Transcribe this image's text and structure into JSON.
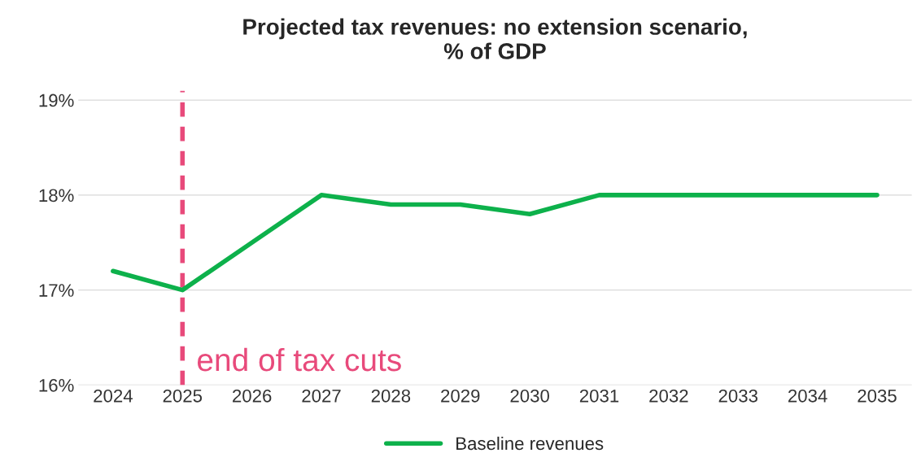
{
  "chart_data": {
    "type": "line",
    "title": "Projected tax revenues: no extension scenario,\n% of GDP",
    "categories": [
      "2024",
      "2025",
      "2026",
      "2027",
      "2028",
      "2029",
      "2030",
      "2031",
      "2032",
      "2033",
      "2034",
      "2035"
    ],
    "series": [
      {
        "name": "Baseline revenues",
        "color": "#0db14b",
        "values": [
          17.2,
          17.0,
          17.5,
          18.0,
          17.9,
          17.9,
          17.8,
          18.0,
          18.0,
          18.0,
          18.0,
          18.0
        ]
      }
    ],
    "ylim": [
      16,
      19.1
    ],
    "yticks": [
      {
        "value": 16,
        "label": "16%"
      },
      {
        "value": 17,
        "label": "17%"
      },
      {
        "value": 18,
        "label": "18%"
      },
      {
        "value": 19,
        "label": "19%"
      }
    ],
    "grid": "y",
    "legend": "bottom",
    "line_style": "solid",
    "ref_lines": [
      {
        "axis": "x",
        "value": "2025",
        "label": "end of tax cuts",
        "color": "#e84a7b",
        "line_style": "dashed"
      }
    ]
  }
}
